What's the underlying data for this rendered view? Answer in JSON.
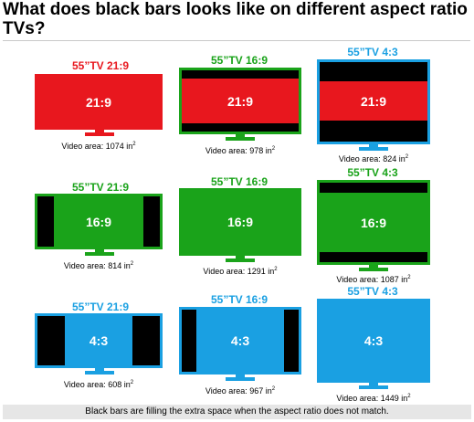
{
  "title": "What does black bars looks like on different aspect ratio TVs?",
  "caption": "Black bars are filling the extra space when the aspect ratio does not match.",
  "colors": {
    "red": "#e8171e",
    "green": "#1aa31a",
    "blue": "#1aa0e2",
    "black": "#000000"
  },
  "rows": [
    {
      "content_label": "21:9",
      "content_color": "#e8171e",
      "tvs": [
        {
          "tv_label": "55”TV 21:9",
          "tv_color": "#e8171e",
          "area_prefix": "Video area: 1074 in",
          "area_unit_exp": "2"
        },
        {
          "tv_label": "55”TV 16:9",
          "tv_color": "#1aa31a",
          "area_prefix": "Video area: 978 in",
          "area_unit_exp": "2"
        },
        {
          "tv_label": "55”TV 4:3",
          "tv_color": "#1aa0e2",
          "area_prefix": "Video area: 824 in",
          "area_unit_exp": "2"
        }
      ]
    },
    {
      "content_label": "16:9",
      "content_color": "#1aa31a",
      "tvs": [
        {
          "tv_label": "55”TV 21:9",
          "tv_color": "#1aa31a",
          "area_prefix": "Video area: 814 in",
          "area_unit_exp": "2"
        },
        {
          "tv_label": "55”TV 16:9",
          "tv_color": "#1aa31a",
          "area_prefix": "Video area: 1291 in",
          "area_unit_exp": "2"
        },
        {
          "tv_label": "55”TV 4:3",
          "tv_color": "#1aa31a",
          "area_prefix": "Video area: 1087 in",
          "area_unit_exp": "2"
        }
      ]
    },
    {
      "content_label": "4:3",
      "content_color": "#1aa0e2",
      "tvs": [
        {
          "tv_label": "55”TV 21:9",
          "tv_color": "#1aa0e2",
          "area_prefix": "Video area: 608 in",
          "area_unit_exp": "2"
        },
        {
          "tv_label": "55”TV 16:9",
          "tv_color": "#1aa0e2",
          "area_prefix": "Video area: 967 in",
          "area_unit_exp": "2"
        },
        {
          "tv_label": "55”TV 4:3",
          "tv_color": "#1aa0e2",
          "area_prefix": "Video area: 1449 in",
          "area_unit_exp": "2"
        }
      ]
    }
  ]
}
